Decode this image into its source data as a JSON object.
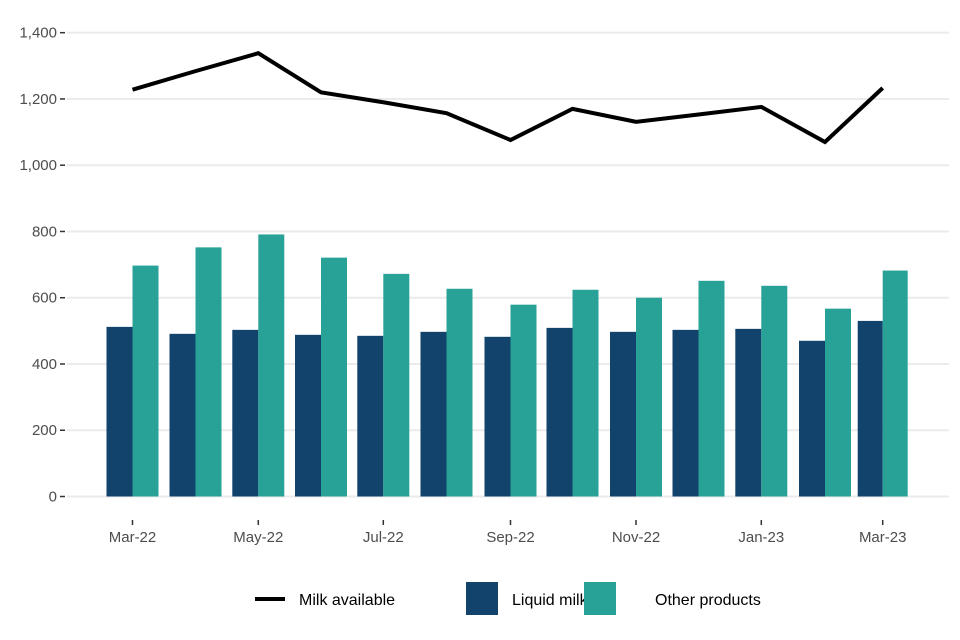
{
  "chart_data": {
    "type": "bar",
    "title": "",
    "xlabel": "",
    "ylabel": "",
    "ylim": [
      0,
      1450
    ],
    "y_ticks": [
      0,
      200,
      400,
      600,
      800,
      1000,
      1200,
      1400
    ],
    "y_tick_labels": [
      "0",
      "200",
      "400",
      "600",
      "800",
      "1,000",
      "1,200",
      "1,400"
    ],
    "grid": "horizontal",
    "legend_position": "bottom",
    "categories": [
      "Mar-22",
      "Apr-22",
      "May-22",
      "Jun-22",
      "Jul-22",
      "Aug-22",
      "Sep-22",
      "Oct-22",
      "Nov-22",
      "Dec-22",
      "Jan-23",
      "Feb-23",
      "Mar-23"
    ],
    "x_tick_labels": [
      "Mar-22",
      "May-22",
      "Jul-22",
      "Sep-22",
      "Nov-22",
      "Jan-23",
      "Mar-23"
    ],
    "series": [
      {
        "name": "Milk available",
        "kind": "line",
        "color": "#000000",
        "values": [
          1228,
          1284,
          1338,
          1220,
          1190,
          1157,
          1076,
          1170,
          1131,
          1153,
          1176,
          1070,
          1233
        ]
      },
      {
        "name": "Liquid milk",
        "kind": "bar",
        "color": "#12436D",
        "values": [
          512,
          491,
          503,
          488,
          485,
          497,
          482,
          509,
          497,
          503,
          506,
          470,
          530
        ]
      },
      {
        "name": "Other products",
        "kind": "bar",
        "color": "#28A197",
        "values": [
          697,
          752,
          791,
          721,
          672,
          627,
          579,
          624,
          600,
          651,
          636,
          567,
          682
        ]
      }
    ]
  },
  "legend": {
    "items": [
      {
        "label": "Milk available",
        "type": "line",
        "color": "#000000"
      },
      {
        "label": "Liquid milk",
        "type": "box",
        "color": "#12436D"
      },
      {
        "label": "Other products",
        "type": "box",
        "color": "#28A197"
      }
    ]
  }
}
